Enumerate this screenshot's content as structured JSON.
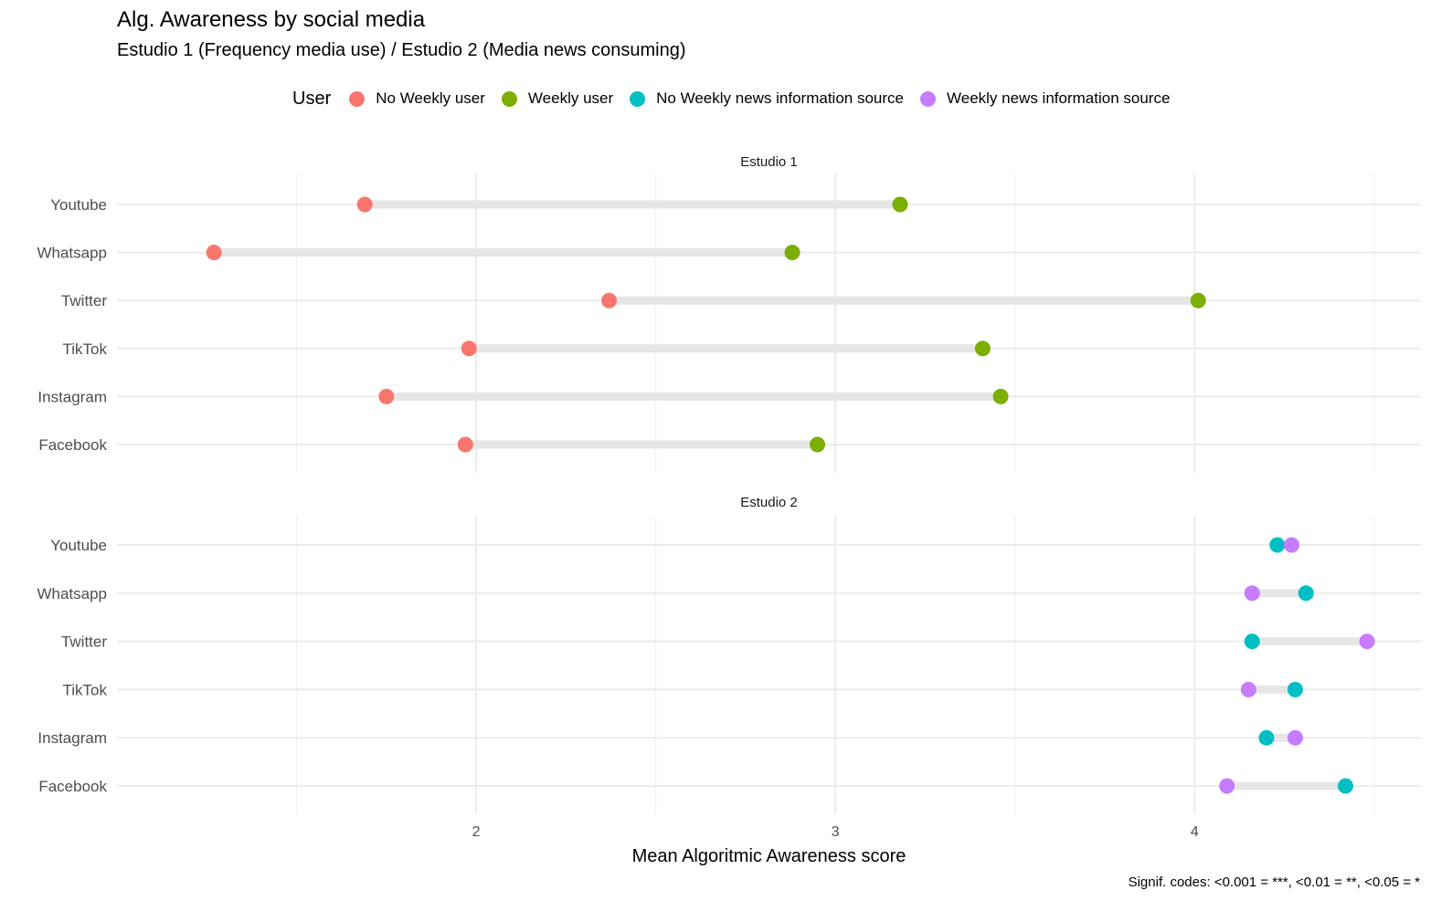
{
  "chart_data": {
    "type": "dumbbell",
    "title": "Alg. Awareness by social media",
    "subtitle": "Estudio 1 (Frequency media use) / Estudio 2 (Media news consuming)",
    "xlabel": "Mean Algoritmic Awareness score",
    "caption": "Signif. codes: <0.001 = ***, <0.01 = **, <0.05 = *",
    "xlim": [
      1.0,
      4.63
    ],
    "x_ticks": [
      2,
      3,
      4
    ],
    "x_tick_labels": [
      "2",
      "3",
      "4"
    ],
    "grid": true,
    "legend": {
      "title": "User",
      "placement": "top",
      "items": [
        {
          "label": "No Weekly user",
          "color": "#F8766D"
        },
        {
          "label": "Weekly user",
          "color": "#7CAE00"
        },
        {
          "label": "No Weekly news information source",
          "color": "#00BFC4"
        },
        {
          "label": "Weekly news information source",
          "color": "#C77CFF"
        }
      ]
    },
    "panels": [
      {
        "title": "Estudio 1",
        "categories": [
          "Youtube",
          "Whatsapp",
          "Twitter",
          "TikTok",
          "Instagram",
          "Facebook"
        ],
        "series": [
          {
            "name": "No Weekly user",
            "color": "#F8766D",
            "values": [
              1.69,
              1.27,
              2.37,
              1.98,
              1.75,
              1.97
            ]
          },
          {
            "name": "Weekly user",
            "color": "#7CAE00",
            "values": [
              3.18,
              2.88,
              4.01,
              3.41,
              3.46,
              2.95
            ]
          }
        ]
      },
      {
        "title": "Estudio 2",
        "categories": [
          "Youtube",
          "Whatsapp",
          "Twitter",
          "TikTok",
          "Instagram",
          "Facebook"
        ],
        "series": [
          {
            "name": "No Weekly news information source",
            "color": "#00BFC4",
            "values": [
              4.23,
              4.31,
              4.16,
              4.28,
              4.2,
              4.42
            ]
          },
          {
            "name": "Weekly news information source",
            "color": "#C77CFF",
            "values": [
              4.27,
              4.16,
              4.48,
              4.15,
              4.28,
              4.09
            ]
          }
        ]
      }
    ]
  }
}
